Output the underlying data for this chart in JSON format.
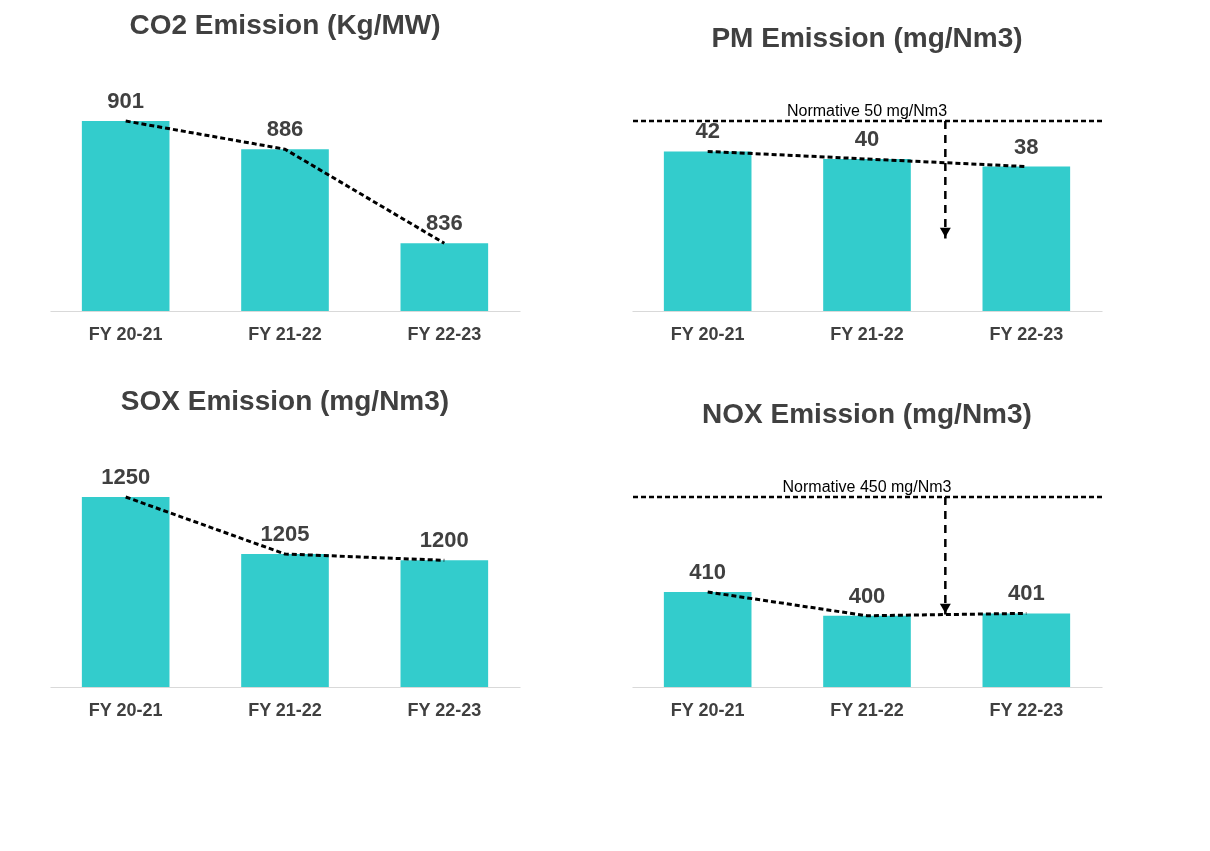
{
  "chart_data": [
    {
      "type": "bar",
      "title": "CO2 Emission (Kg/MW)",
      "categories": [
        "FY 20-21",
        "FY 21-22",
        "FY 22-23"
      ],
      "ylim": [
        800,
        901
      ],
      "tick_labels": "x",
      "series": [
        {
          "type": "bar",
          "color": "#33cccc",
          "values": [
            901,
            886,
            836
          ],
          "value_labels": [
            "901",
            "886",
            "836"
          ]
        },
        {
          "type": "line",
          "color": "#000000",
          "line_style": "dashed",
          "marker": "none",
          "values": [
            901,
            886,
            836
          ]
        }
      ]
    },
    {
      "type": "bar",
      "title": "PM Emission (mg/Nm3)",
      "categories": [
        "FY 20-21",
        "FY 21-22",
        "FY 22-23"
      ],
      "ylim": [
        0,
        50
      ],
      "tick_labels": "x",
      "series": [
        {
          "type": "bar",
          "color": "#33cccc",
          "values": [
            42,
            40,
            38
          ],
          "value_labels": [
            "42",
            "40",
            "38"
          ]
        },
        {
          "type": "line",
          "color": "#000000",
          "line_style": "dashed",
          "marker": "none",
          "values": [
            42,
            40,
            38
          ]
        }
      ],
      "ref_lines": [
        {
          "axis": "y",
          "value": 50,
          "label": "Normative 50 mg/Nm3",
          "color": "#000000",
          "line_style": "dashed"
        }
      ]
    },
    {
      "type": "bar",
      "title": "SOX Emission (mg/Nm3)",
      "categories": [
        "FY 20-21",
        "FY 21-22",
        "FY 22-23"
      ],
      "ylim": [
        1100,
        1250
      ],
      "tick_labels": "x",
      "series": [
        {
          "type": "bar",
          "color": "#33cccc",
          "values": [
            1250,
            1205,
            1200
          ],
          "value_labels": [
            "1250",
            "1205",
            "1200"
          ]
        },
        {
          "type": "line",
          "color": "#000000",
          "line_style": "dashed",
          "marker": "none",
          "values": [
            1250,
            1205,
            1200
          ]
        }
      ]
    },
    {
      "type": "bar",
      "title": "NOX Emission (mg/Nm3)",
      "categories": [
        "FY 20-21",
        "FY 21-22",
        "FY 22-23"
      ],
      "ylim": [
        370,
        450
      ],
      "tick_labels": "x",
      "series": [
        {
          "type": "bar",
          "color": "#33cccc",
          "values": [
            410,
            400,
            401
          ],
          "value_labels": [
            "410",
            "400",
            "401"
          ]
        },
        {
          "type": "line",
          "color": "#000000",
          "line_style": "dashed",
          "marker": "none",
          "values": [
            410,
            400,
            401
          ]
        }
      ],
      "ref_lines": [
        {
          "axis": "y",
          "value": 450,
          "label": "Normative 450 mg/Nm3",
          "color": "#000000",
          "line_style": "dashed"
        }
      ]
    }
  ]
}
